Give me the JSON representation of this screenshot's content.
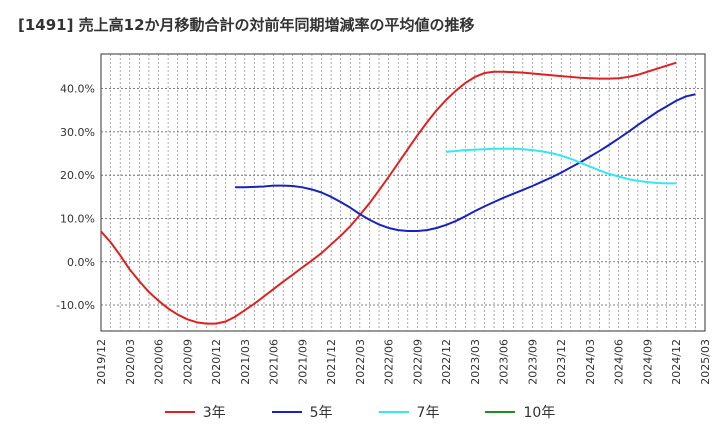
{
  "chart_data": {
    "type": "line",
    "title": "[1491]  売上高12か月移動合計の対前年同期増減率の平均値の推移",
    "xlabel": "",
    "ylabel": "",
    "ylim": [
      -16,
      48
    ],
    "y_ticks": [
      "-10.0%",
      "0.0%",
      "10.0%",
      "20.0%",
      "30.0%",
      "40.0%"
    ],
    "y_tick_values": [
      -10,
      0,
      10,
      20,
      30,
      40
    ],
    "x_ticks": [
      "2019/12",
      "2020/03",
      "2020/06",
      "2020/09",
      "2020/12",
      "2021/03",
      "2021/06",
      "2021/09",
      "2021/12",
      "2022/03",
      "2022/06",
      "2022/09",
      "2022/12",
      "2023/03",
      "2023/06",
      "2023/09",
      "2023/12",
      "2024/03",
      "2024/06",
      "2024/09",
      "2024/12",
      "2025/03"
    ],
    "grid": true,
    "legend_position": "bottom",
    "series": [
      {
        "name": "3年",
        "color": "#dd2222",
        "points": [
          [
            "2019/12",
            7.0
          ],
          [
            "2020/01",
            4.5
          ],
          [
            "2020/02",
            1.5
          ],
          [
            "2020/03",
            -1.8
          ],
          [
            "2020/04",
            -4.5
          ],
          [
            "2020/05",
            -7.0
          ],
          [
            "2020/06",
            -9.0
          ],
          [
            "2020/07",
            -10.8
          ],
          [
            "2020/08",
            -12.2
          ],
          [
            "2020/09",
            -13.3
          ],
          [
            "2020/10",
            -14.0
          ],
          [
            "2020/11",
            -14.3
          ],
          [
            "2020/12",
            -14.3
          ],
          [
            "2021/01",
            -13.8
          ],
          [
            "2021/02",
            -12.7
          ],
          [
            "2021/03",
            -11.2
          ],
          [
            "2021/04",
            -9.7
          ],
          [
            "2021/05",
            -8.0
          ],
          [
            "2021/06",
            -6.3
          ],
          [
            "2021/07",
            -4.6
          ],
          [
            "2021/08",
            -3.0
          ],
          [
            "2021/09",
            -1.3
          ],
          [
            "2021/10",
            0.3
          ],
          [
            "2021/11",
            2.0
          ],
          [
            "2021/12",
            4.0
          ],
          [
            "2022/01",
            6.0
          ],
          [
            "2022/02",
            8.2
          ],
          [
            "2022/03",
            10.8
          ],
          [
            "2022/04",
            13.5
          ],
          [
            "2022/05",
            16.5
          ],
          [
            "2022/06",
            19.6
          ],
          [
            "2022/07",
            22.8
          ],
          [
            "2022/08",
            26.0
          ],
          [
            "2022/09",
            29.2
          ],
          [
            "2022/10",
            32.2
          ],
          [
            "2022/11",
            35.0
          ],
          [
            "2022/12",
            37.4
          ],
          [
            "2023/01",
            39.5
          ],
          [
            "2023/02",
            41.3
          ],
          [
            "2023/03",
            42.7
          ],
          [
            "2023/04",
            43.6
          ],
          [
            "2023/05",
            43.9
          ],
          [
            "2023/06",
            43.9
          ],
          [
            "2023/07",
            43.8
          ],
          [
            "2023/08",
            43.7
          ],
          [
            "2023/09",
            43.5
          ],
          [
            "2023/10",
            43.3
          ],
          [
            "2023/11",
            43.1
          ],
          [
            "2023/12",
            42.9
          ],
          [
            "2024/01",
            42.7
          ],
          [
            "2024/02",
            42.5
          ],
          [
            "2024/03",
            42.4
          ],
          [
            "2024/04",
            42.3
          ],
          [
            "2024/05",
            42.3
          ],
          [
            "2024/06",
            42.4
          ],
          [
            "2024/07",
            42.7
          ],
          [
            "2024/08",
            43.2
          ],
          [
            "2024/09",
            43.9
          ],
          [
            "2024/10",
            44.6
          ],
          [
            "2024/11",
            45.3
          ],
          [
            "2024/12",
            46.0
          ]
        ]
      },
      {
        "name": "5年",
        "color": "#1a22bb",
        "points": [
          [
            "2021/02",
            17.2
          ],
          [
            "2021/03",
            17.2
          ],
          [
            "2021/04",
            17.3
          ],
          [
            "2021/05",
            17.4
          ],
          [
            "2021/06",
            17.6
          ],
          [
            "2021/07",
            17.6
          ],
          [
            "2021/08",
            17.5
          ],
          [
            "2021/09",
            17.2
          ],
          [
            "2021/10",
            16.7
          ],
          [
            "2021/11",
            16.0
          ],
          [
            "2021/12",
            15.0
          ],
          [
            "2022/01",
            13.8
          ],
          [
            "2022/02",
            12.5
          ],
          [
            "2022/03",
            11.0
          ],
          [
            "2022/04",
            9.7
          ],
          [
            "2022/05",
            8.6
          ],
          [
            "2022/06",
            7.8
          ],
          [
            "2022/07",
            7.3
          ],
          [
            "2022/08",
            7.1
          ],
          [
            "2022/09",
            7.1
          ],
          [
            "2022/10",
            7.3
          ],
          [
            "2022/11",
            7.8
          ],
          [
            "2022/12",
            8.5
          ],
          [
            "2023/01",
            9.4
          ],
          [
            "2023/02",
            10.5
          ],
          [
            "2023/03",
            11.7
          ],
          [
            "2023/04",
            12.8
          ],
          [
            "2023/05",
            13.8
          ],
          [
            "2023/06",
            14.8
          ],
          [
            "2023/07",
            15.7
          ],
          [
            "2023/08",
            16.6
          ],
          [
            "2023/09",
            17.5
          ],
          [
            "2023/10",
            18.5
          ],
          [
            "2023/11",
            19.5
          ],
          [
            "2023/12",
            20.6
          ],
          [
            "2024/01",
            21.8
          ],
          [
            "2024/02",
            23.0
          ],
          [
            "2024/03",
            24.3
          ],
          [
            "2024/04",
            25.6
          ],
          [
            "2024/05",
            27.0
          ],
          [
            "2024/06",
            28.5
          ],
          [
            "2024/07",
            30.0
          ],
          [
            "2024/08",
            31.6
          ],
          [
            "2024/09",
            33.1
          ],
          [
            "2024/10",
            34.6
          ],
          [
            "2024/11",
            35.9
          ],
          [
            "2024/12",
            37.2
          ],
          [
            "2025/01",
            38.2
          ],
          [
            "2025/02",
            38.7
          ]
        ]
      },
      {
        "name": "7年",
        "color": "#33e8f0",
        "points": [
          [
            "2022/12",
            25.4
          ],
          [
            "2023/01",
            25.6
          ],
          [
            "2023/02",
            25.8
          ],
          [
            "2023/03",
            25.9
          ],
          [
            "2023/04",
            26.0
          ],
          [
            "2023/05",
            26.1
          ],
          [
            "2023/06",
            26.1
          ],
          [
            "2023/07",
            26.1
          ],
          [
            "2023/08",
            26.0
          ],
          [
            "2023/09",
            25.8
          ],
          [
            "2023/10",
            25.5
          ],
          [
            "2023/11",
            25.1
          ],
          [
            "2023/12",
            24.5
          ],
          [
            "2024/01",
            23.8
          ],
          [
            "2024/02",
            22.9
          ],
          [
            "2024/03",
            22.0
          ],
          [
            "2024/04",
            21.1
          ],
          [
            "2024/05",
            20.3
          ],
          [
            "2024/06",
            19.7
          ],
          [
            "2024/07",
            19.1
          ],
          [
            "2024/08",
            18.7
          ],
          [
            "2024/09",
            18.4
          ],
          [
            "2024/10",
            18.2
          ],
          [
            "2024/11",
            18.1
          ],
          [
            "2024/12",
            18.1
          ]
        ]
      },
      {
        "name": "10年",
        "color": "#228b22",
        "points": []
      }
    ]
  }
}
